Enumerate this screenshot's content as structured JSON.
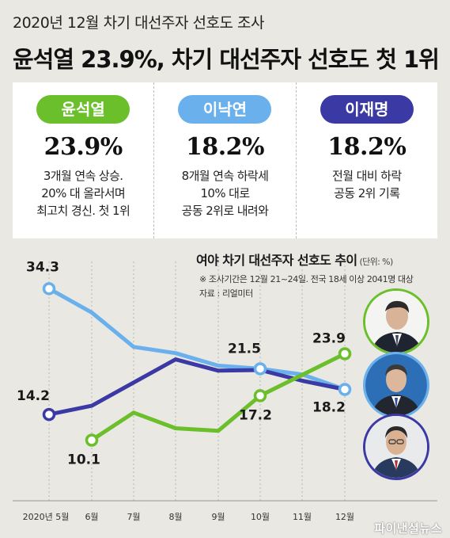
{
  "supertitle": "2020년 12월 차기 대선주자 선호도 조사",
  "headline": "윤석열 23.9%, 차기 대선주자 선호도 첫 1위",
  "colors": {
    "yoon": "#6bbf2a",
    "lee_ny": "#6ab0ec",
    "lee_jm": "#3b39a4",
    "background": "#e9e8e3"
  },
  "cards": [
    {
      "name": "윤석열",
      "value": "23.9%",
      "desc": "3개월 연속 상승.\n20% 대 올라서며\n최고치 경신. 첫 1위",
      "color": "#6bbf2a"
    },
    {
      "name": "이낙연",
      "value": "18.2%",
      "desc": "8개월 연속 하락세\n10% 대로\n공동 2위로 내려와",
      "color": "#6ab0ec"
    },
    {
      "name": "이재명",
      "value": "18.2%",
      "desc": "전월 대비 하락\n공동 2위 기록",
      "color": "#3b39a4"
    }
  ],
  "chart_title": "여야 차기 대선주자 선호도 추이",
  "chart_unit": "(단위: %)",
  "note": "※ 조사기간은 12월 21~24일. 전국 18세 이상 2041명 대상",
  "source": "자료 : 리얼미터",
  "watermark": "파이낸셜뉴스",
  "chart_data": {
    "type": "line",
    "categories": [
      "2020년 5월",
      "6월",
      "7월",
      "8월",
      "9월",
      "10월",
      "11월",
      "12월"
    ],
    "series": [
      {
        "name": "이낙연",
        "color": "#6ab0ec",
        "values": [
          34.3,
          30.5,
          25.0,
          24.0,
          22.0,
          21.5,
          20.6,
          18.2
        ]
      },
      {
        "name": "이재명",
        "color": "#3b39a4",
        "values": [
          14.2,
          15.6,
          null,
          23.0,
          21.2,
          21.3,
          19.6,
          18.2
        ]
      },
      {
        "name": "윤석열",
        "color": "#6bbf2a",
        "values": [
          null,
          10.1,
          14.5,
          12.0,
          11.6,
          17.2,
          null,
          23.9
        ]
      }
    ],
    "labels": [
      {
        "series": "이낙연",
        "index": 0,
        "text": "34.3"
      },
      {
        "series": "이재명",
        "index": 0,
        "text": "14.2"
      },
      {
        "series": "윤석열",
        "index": 1,
        "text": "10.1"
      },
      {
        "series": "이낙연",
        "index": 5,
        "text": "21.5"
      },
      {
        "series": "윤석열",
        "index": 5,
        "text": "17.2"
      },
      {
        "series": "윤석열",
        "index": 7,
        "text": "23.9"
      },
      {
        "series": "이낙연",
        "index": 7,
        "text": "18.2"
      }
    ],
    "ylim": [
      7,
      37
    ],
    "grid": false,
    "legend": "none"
  }
}
